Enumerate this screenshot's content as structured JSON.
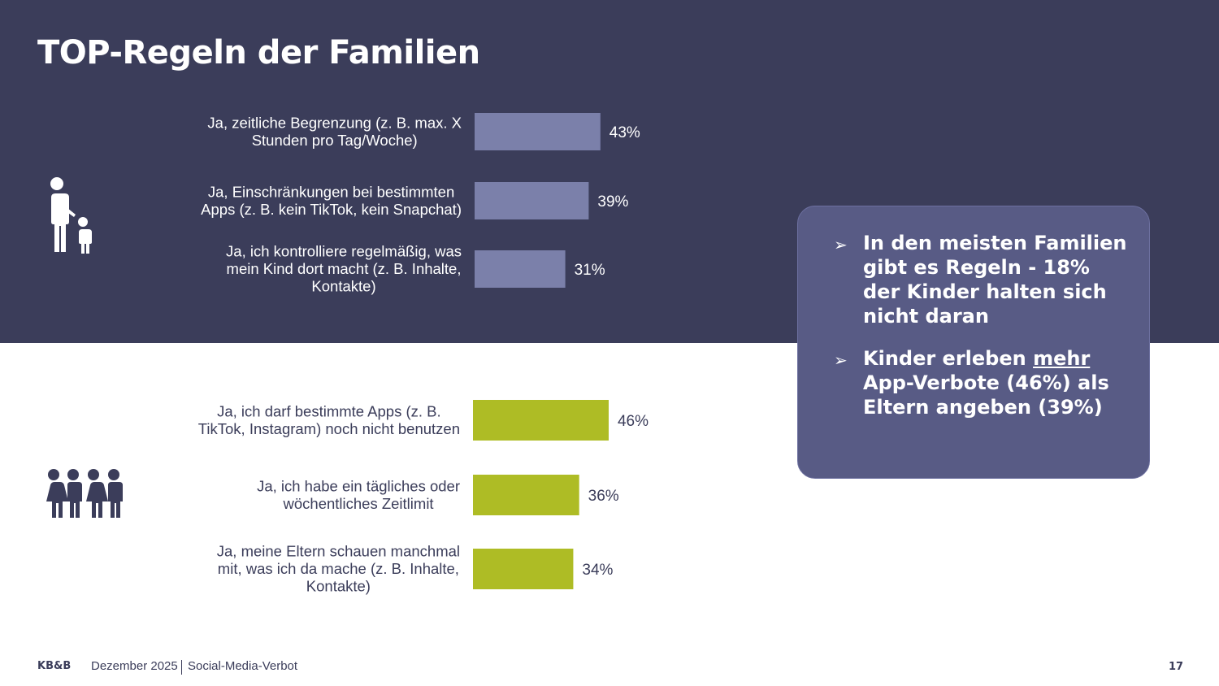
{
  "title": "TOP-Regeln der Familien",
  "colors": {
    "header_bg": "#3b3d5a",
    "parent_bar": "#7b80aa",
    "child_bar": "#aebc25",
    "info_bg": "#585b85",
    "dark_text": "#3b3d5a"
  },
  "chart_data": [
    {
      "type": "bar",
      "orientation": "horizontal",
      "group": "parents",
      "icon": "parent-child-icon",
      "categories": [
        "Ja, zeitliche Begrenzung (z. B. max. X Stunden pro Tag/Woche)",
        "Ja, Einschränkungen bei bestimmten Apps (z. B. kein TikTok, kein Snapchat)",
        "Ja, ich kontrolliere regelmäßig, was mein Kind dort macht (z. B. Inhalte, Kontakte)"
      ],
      "label_lines": [
        [
          "Ja, zeitliche Begrenzung (z. B. max. X",
          "Stunden pro Tag/Woche)"
        ],
        [
          "Ja, Einschränkungen bei bestimmten",
          "Apps (z. B. kein TikTok, kein Snapchat)"
        ],
        [
          "Ja, ich kontrolliere regelmäßig, was",
          "mein Kind dort macht (z. B. Inhalte,",
          "Kontakte)"
        ]
      ],
      "values": [
        43,
        39,
        31
      ],
      "value_labels": [
        "43%",
        "39%",
        "31%"
      ],
      "unit": "%"
    },
    {
      "type": "bar",
      "orientation": "horizontal",
      "group": "children",
      "icon": "children-group-icon",
      "categories": [
        "Ja, ich darf bestimmte Apps (z. B. TikTok, Instagram) noch nicht benutzen",
        "Ja, ich habe ein tägliches oder wöchentliches Zeitlimit",
        "Ja, meine Eltern schauen manchmal mit, was ich da mache (z. B. Inhalte, Kontakte)"
      ],
      "label_lines": [
        [
          "Ja, ich darf bestimmte Apps (z. B.",
          "TikTok, Instagram) noch nicht benutzen"
        ],
        [
          "Ja, ich habe ein tägliches oder",
          "wöchentliches Zeitlimit"
        ],
        [
          "Ja, meine Eltern schauen manchmal",
          "mit, was ich da mache (z. B. Inhalte,",
          "Kontakte)"
        ]
      ],
      "values": [
        46,
        36,
        34
      ],
      "value_labels": [
        "46%",
        "36%",
        "34%"
      ],
      "unit": "%"
    }
  ],
  "info_box": {
    "bullets": [
      {
        "parts": [
          {
            "text": "In den meisten Familien gibt es Regeln - 18% der Kinder halten sich nicht daran",
            "underline": false
          }
        ]
      },
      {
        "parts": [
          {
            "text": "Kinder erleben ",
            "underline": false
          },
          {
            "text": "mehr",
            "underline": true
          },
          {
            "text": " App-Verbote (46%) als Eltern angeben (39%)",
            "underline": false
          }
        ]
      }
    ],
    "bullet_glyph": "➢"
  },
  "footer": {
    "logo": "KB&B",
    "date": "Dezember 2025",
    "topic": "Social-Media-Verbot",
    "page": "17"
  }
}
